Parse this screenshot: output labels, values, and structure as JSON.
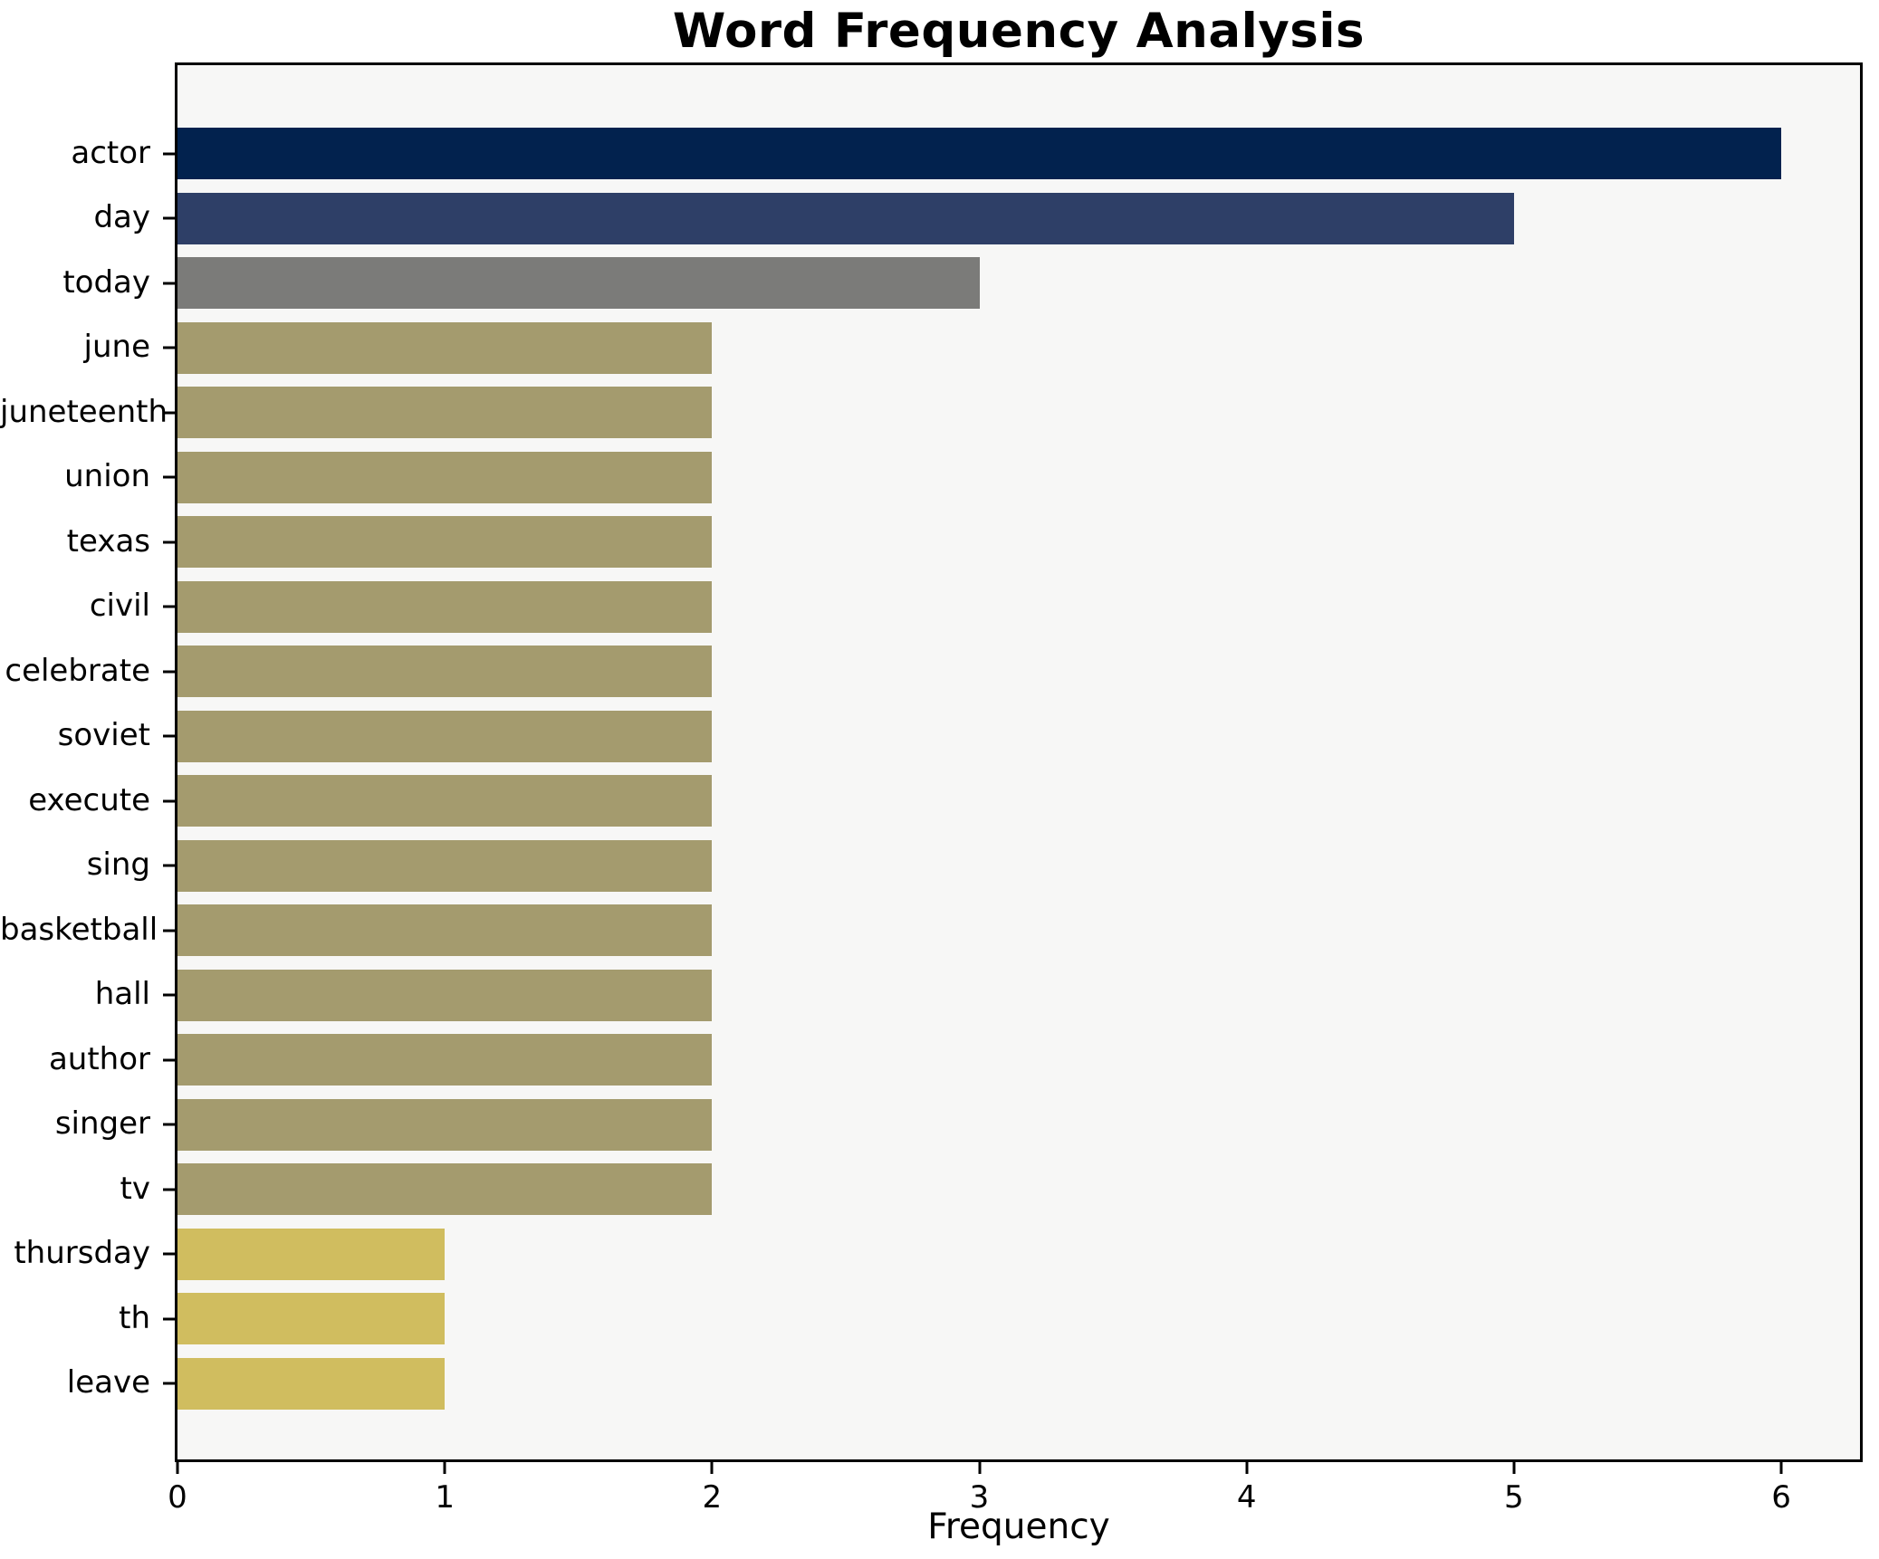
{
  "figure": {
    "title": "Word Frequency Analysis",
    "xlabel": "Frequency"
  },
  "chart_data": {
    "type": "bar",
    "orientation": "horizontal",
    "title": "Word Frequency Analysis",
    "xlabel": "Frequency",
    "ylabel": "",
    "categories": [
      "actor",
      "day",
      "today",
      "june",
      "juneteenth",
      "union",
      "texas",
      "civil",
      "celebrate",
      "soviet",
      "execute",
      "sing",
      "basketball",
      "hall",
      "author",
      "singer",
      "tv",
      "thursday",
      "th",
      "leave"
    ],
    "values": [
      6,
      5,
      3,
      2,
      2,
      2,
      2,
      2,
      2,
      2,
      2,
      2,
      2,
      2,
      2,
      2,
      2,
      1,
      1,
      1
    ],
    "bar_colors": [
      "#02224e",
      "#2e3f67",
      "#7b7b79",
      "#a49b6e",
      "#a49b6e",
      "#a49b6e",
      "#a49b6e",
      "#a49b6e",
      "#a49b6e",
      "#a49b6e",
      "#a49b6e",
      "#a49b6e",
      "#a49b6e",
      "#a49b6e",
      "#a49b6e",
      "#a49b6e",
      "#a49b6e",
      "#d0bd5f",
      "#d0bd5f",
      "#d0bd5f"
    ],
    "xlim": [
      0,
      6.3
    ],
    "xticks": [
      0,
      1,
      2,
      3,
      4,
      5,
      6
    ],
    "grid": false,
    "legend": null,
    "colors": {
      "plot_background": "#f7f7f6",
      "figure_background": "#ffffff",
      "spine": "#000000",
      "text": "#000000"
    }
  }
}
